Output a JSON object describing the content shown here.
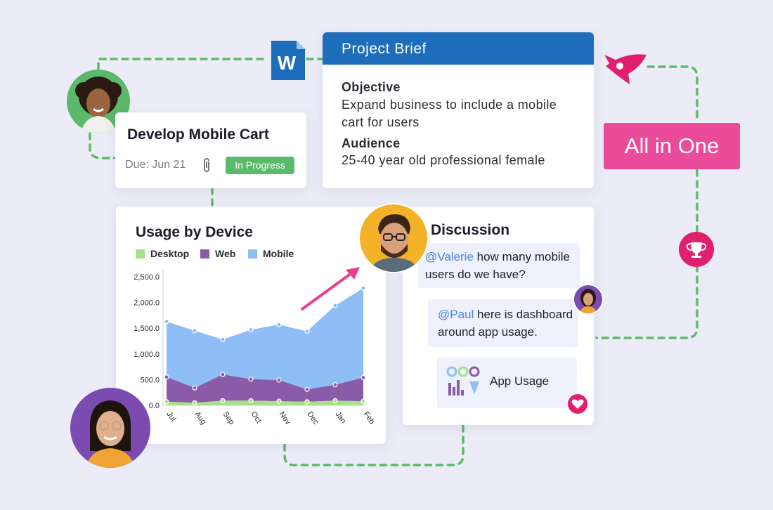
{
  "task_card": {
    "title": "Develop Mobile Cart",
    "due": "Due: Jun 21",
    "status": "In Progress",
    "status_color": "#5ab96a",
    "attachment_icon": "paperclip-icon"
  },
  "brief": {
    "title": "Project Brief",
    "header_color": "#1e6dbb",
    "objective_label": "Objective",
    "objective_line1": "Expand business to include a mobile",
    "objective_line2": "cart for users",
    "audience_label": "Audience",
    "audience_text": "25-40 year old professional female",
    "file_icon": "word-document-icon"
  },
  "badge_all_in_one": {
    "text": "All in One",
    "color": "#ea4b9a"
  },
  "icons": {
    "rocket": "rocket-icon",
    "trophy": "trophy-icon"
  },
  "chart": {
    "title": "Usage by Device",
    "legend": [
      "Desktop",
      "Web",
      "Mobile"
    ]
  },
  "chart_data": {
    "type": "area",
    "title": "Usage by Device",
    "x": [
      "Jul",
      "Aug",
      "Sep",
      "Oct",
      "Nov",
      "Dec",
      "Jan",
      "Feb"
    ],
    "y_ticks": [
      "0.0",
      "500.0",
      "1,000.0",
      "1,500.0",
      "2,000.0",
      "2,500.0"
    ],
    "ylim": [
      0,
      2500
    ],
    "stacked": true,
    "legend_position": "top",
    "series": [
      {
        "name": "Desktop",
        "color": "#a6e08a",
        "values": [
          70,
          50,
          90,
          90,
          80,
          70,
          90,
          80
        ]
      },
      {
        "name": "Web",
        "color": "#8a5ba8",
        "values": [
          480,
          290,
          510,
          420,
          410,
          240,
          310,
          460
        ]
      },
      {
        "name": "Mobile",
        "color": "#8fbdf5",
        "values": [
          1080,
          1110,
          680,
          960,
          1080,
          1130,
          1540,
          1740
        ]
      }
    ],
    "totals": [
      1630,
      1450,
      1280,
      1470,
      1570,
      1440,
      1940,
      2280
    ]
  },
  "discussion": {
    "title": "Discussion",
    "msg1_mention": "@Valerie",
    "msg1_text": " how many mobile",
    "msg1_line2": "users do we have?",
    "msg2_mention": "@Paul",
    "msg2_text": " here is dashboard",
    "msg2_line2": "around app usage.",
    "attachment_label": "App Usage",
    "mention_color": "#4a82e0"
  },
  "avatars": [
    "woman-curly-hair-avatar",
    "man-glasses-avatar",
    "woman-small-avatar",
    "woman-glasses-avatar"
  ]
}
